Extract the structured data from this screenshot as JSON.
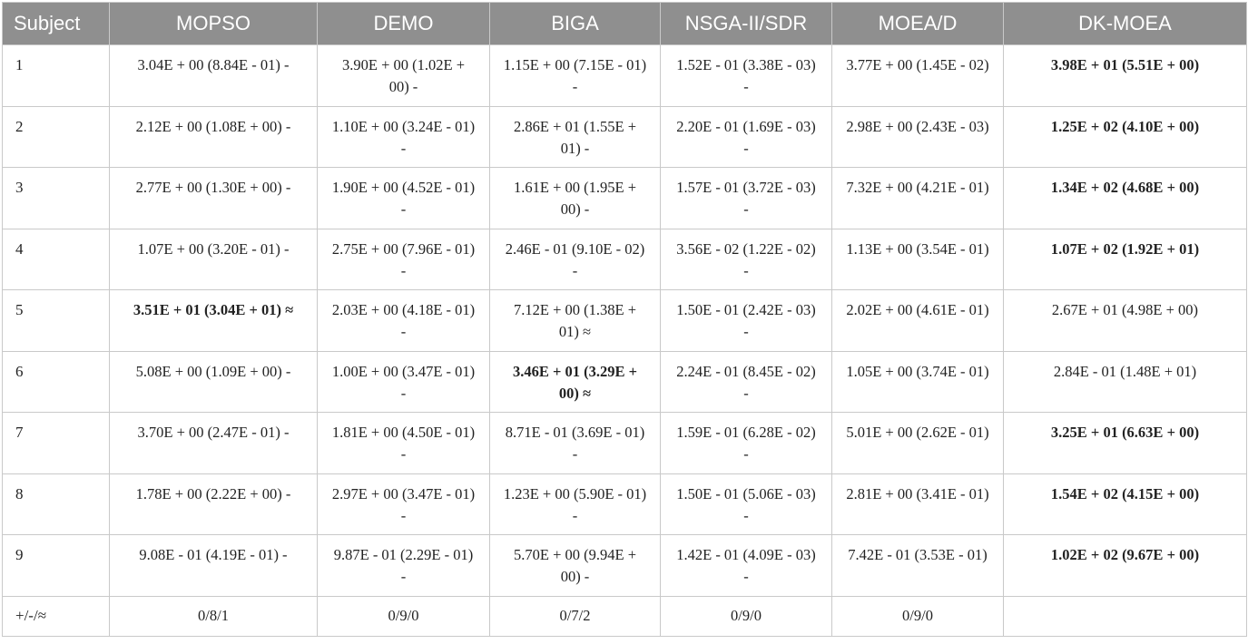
{
  "table": {
    "headers": [
      "Subject",
      "MOPSO",
      "DEMO",
      "BIGA",
      "NSGA-II/SDR",
      "MOEA/D",
      "DK-MOEA"
    ],
    "rows": [
      {
        "subject": "1",
        "cells": [
          {
            "text": "3.04E + 00 (8.84E - 01) -",
            "best": false
          },
          {
            "text": "3.90E + 00 (1.02E + 00) -",
            "best": false
          },
          {
            "text": "1.15E + 00 (7.15E - 01) -",
            "best": false
          },
          {
            "text": "1.52E - 01 (3.38E - 03) -",
            "best": false
          },
          {
            "text": "3.77E + 00 (1.45E - 02)",
            "best": false
          },
          {
            "text": "3.98E + 01 (5.51E + 00)",
            "best": true
          }
        ]
      },
      {
        "subject": "2",
        "cells": [
          {
            "text": "2.12E + 00 (1.08E + 00) -",
            "best": false
          },
          {
            "text": "1.10E + 00 (3.24E - 01) -",
            "best": false
          },
          {
            "text": "2.86E + 01 (1.55E + 01) -",
            "best": false
          },
          {
            "text": "2.20E - 01 (1.69E - 03) -",
            "best": false
          },
          {
            "text": "2.98E + 00 (2.43E - 03)",
            "best": false
          },
          {
            "text": "1.25E + 02 (4.10E + 00)",
            "best": true
          }
        ]
      },
      {
        "subject": "3",
        "cells": [
          {
            "text": "2.77E + 00 (1.30E + 00) -",
            "best": false
          },
          {
            "text": "1.90E + 00 (4.52E - 01) -",
            "best": false
          },
          {
            "text": "1.61E + 00 (1.95E + 00) -",
            "best": false
          },
          {
            "text": "1.57E - 01 (3.72E - 03) -",
            "best": false
          },
          {
            "text": "7.32E + 00 (4.21E - 01)",
            "best": false
          },
          {
            "text": "1.34E + 02 (4.68E + 00)",
            "best": true
          }
        ]
      },
      {
        "subject": "4",
        "cells": [
          {
            "text": "1.07E + 00 (3.20E - 01) -",
            "best": false
          },
          {
            "text": "2.75E + 00 (7.96E - 01) -",
            "best": false
          },
          {
            "text": "2.46E - 01 (9.10E - 02) -",
            "best": false
          },
          {
            "text": "3.56E - 02 (1.22E - 02) -",
            "best": false
          },
          {
            "text": "1.13E + 00 (3.54E - 01)",
            "best": false
          },
          {
            "text": "1.07E + 02 (1.92E + 01)",
            "best": true
          }
        ]
      },
      {
        "subject": "5",
        "cells": [
          {
            "text": "3.51E + 01 (3.04E + 01) ≈",
            "best": true
          },
          {
            "text": "2.03E + 00 (4.18E - 01) -",
            "best": false
          },
          {
            "text": "7.12E + 00 (1.38E + 01) ≈",
            "best": false
          },
          {
            "text": "1.50E - 01 (2.42E - 03) -",
            "best": false
          },
          {
            "text": "2.02E + 00 (4.61E - 01)",
            "best": false
          },
          {
            "text": "2.67E + 01 (4.98E + 00)",
            "best": false
          }
        ]
      },
      {
        "subject": "6",
        "cells": [
          {
            "text": "5.08E + 00 (1.09E + 00) -",
            "best": false
          },
          {
            "text": "1.00E + 00 (3.47E - 01) -",
            "best": false
          },
          {
            "text": "3.46E + 01 (3.29E + 00) ≈",
            "best": true
          },
          {
            "text": "2.24E - 01 (8.45E - 02) -",
            "best": false
          },
          {
            "text": "1.05E + 00 (3.74E - 01)",
            "best": false
          },
          {
            "text": "2.84E - 01 (1.48E + 01)",
            "best": false
          }
        ]
      },
      {
        "subject": "7",
        "cells": [
          {
            "text": "3.70E + 00 (2.47E - 01) -",
            "best": false
          },
          {
            "text": "1.81E + 00 (4.50E - 01) -",
            "best": false
          },
          {
            "text": "8.71E - 01 (3.69E - 01) -",
            "best": false
          },
          {
            "text": "1.59E - 01 (6.28E - 02) -",
            "best": false
          },
          {
            "text": "5.01E + 00 (2.62E - 01)",
            "best": false
          },
          {
            "text": "3.25E + 01 (6.63E + 00)",
            "best": true
          }
        ]
      },
      {
        "subject": "8",
        "cells": [
          {
            "text": "1.78E + 00 (2.22E + 00) -",
            "best": false
          },
          {
            "text": "2.97E + 00 (3.47E - 01) -",
            "best": false
          },
          {
            "text": "1.23E + 00 (5.90E - 01) -",
            "best": false
          },
          {
            "text": "1.50E - 01 (5.06E - 03) -",
            "best": false
          },
          {
            "text": "2.81E + 00 (3.41E - 01)",
            "best": false
          },
          {
            "text": "1.54E + 02 (4.15E + 00)",
            "best": true
          }
        ]
      },
      {
        "subject": "9",
        "cells": [
          {
            "text": "9.08E - 01 (4.19E - 01) -",
            "best": false
          },
          {
            "text": "9.87E - 01 (2.29E - 01) -",
            "best": false
          },
          {
            "text": "5.70E + 00 (9.94E + 00) -",
            "best": false
          },
          {
            "text": "1.42E - 01 (4.09E - 03) -",
            "best": false
          },
          {
            "text": "7.42E - 01 (3.53E - 01)",
            "best": false
          },
          {
            "text": "1.02E + 02 (9.67E + 00)",
            "best": true
          }
        ]
      }
    ],
    "summary": {
      "label": "+/-/≈",
      "cells": [
        "0/8/1",
        "0/9/0",
        "0/7/2",
        "0/9/0",
        "0/9/0",
        ""
      ]
    }
  }
}
